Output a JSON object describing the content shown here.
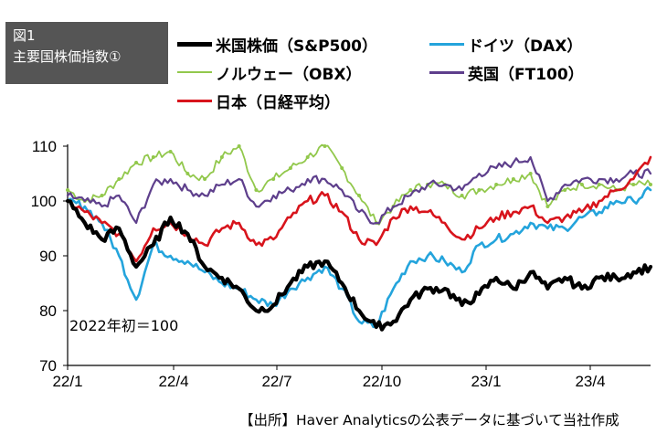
{
  "figure": {
    "number": "図1",
    "title": "主要国株価指数①"
  },
  "source": "【出所】Haver Analyticsの公表データに基づいて当社作成",
  "annotation": "2022年初＝100",
  "colors": {
    "sp500": "#000000",
    "obx": "#92c84c",
    "nikkei": "#d8141c",
    "dax": "#24a4dc",
    "ft100": "#5e3f8c"
  },
  "chart_data": {
    "type": "line",
    "title": "主要国株価指数①",
    "xlabel": "",
    "ylabel": "",
    "ylim": [
      70,
      110
    ],
    "yticks": [
      70,
      80,
      90,
      100,
      110
    ],
    "xticks": [
      "22/1",
      "22/4",
      "22/7",
      "22/10",
      "23/1",
      "23/4"
    ],
    "grid": false,
    "legend_placement": "top",
    "x": [
      "22/1",
      "22/1b",
      "22/2",
      "22/2b",
      "22/3",
      "22/3b",
      "22/4",
      "22/4b",
      "22/5",
      "22/5b",
      "22/6",
      "22/6b",
      "22/7",
      "22/7b",
      "22/8",
      "22/8b",
      "22/9",
      "22/9b",
      "22/10",
      "22/10b",
      "22/11",
      "22/11b",
      "22/12",
      "22/12b",
      "23/1",
      "23/1b",
      "23/2",
      "23/2b",
      "23/3",
      "23/3b",
      "23/4",
      "23/4b",
      "23/5",
      "23/5b",
      "23/6"
    ],
    "series": [
      {
        "name": "米国株価（S&P500）",
        "key": "sp500",
        "values": [
          100,
          96,
          93,
          95,
          88,
          92,
          97,
          94,
          88,
          86,
          84,
          80,
          81,
          85,
          88,
          89,
          85,
          80,
          77,
          78,
          82,
          84,
          84,
          81,
          83,
          86,
          84,
          87,
          84,
          86,
          84,
          86,
          86,
          87,
          88
        ]
      },
      {
        "name": "ドイツ（DAX）",
        "key": "dax",
        "values": [
          100,
          99,
          96,
          90,
          82,
          92,
          90,
          89,
          87,
          85,
          84,
          82,
          81,
          84,
          86,
          88,
          84,
          78,
          77,
          84,
          89,
          90,
          89,
          87,
          92,
          93,
          94,
          96,
          95,
          95,
          97,
          98,
          100,
          100,
          102
        ]
      },
      {
        "name": "ノルウェー（OBX）",
        "key": "obx",
        "values": [
          102,
          100,
          101,
          104,
          107,
          108,
          109,
          105,
          104,
          108,
          110,
          102,
          104,
          106,
          108,
          110,
          106,
          101,
          96,
          99,
          102,
          103,
          103,
          101,
          102,
          103,
          104,
          105,
          99,
          102,
          103,
          103,
          102,
          103,
          103
        ]
      },
      {
        "name": "英国（FT100）",
        "key": "ft100",
        "values": [
          101,
          100,
          99,
          101,
          96,
          103,
          104,
          102,
          101,
          103,
          104,
          99,
          101,
          102,
          104,
          104,
          102,
          98,
          96,
          99,
          101,
          103,
          103,
          102,
          105,
          106,
          107,
          108,
          100,
          103,
          104,
          104,
          104,
          105,
          105
        ]
      },
      {
        "name": "日本（日経平均）",
        "key": "nikkei",
        "values": [
          100,
          98,
          96,
          94,
          89,
          95,
          96,
          94,
          92,
          95,
          96,
          92,
          93,
          97,
          100,
          101,
          98,
          93,
          92,
          97,
          99,
          98,
          96,
          93,
          95,
          97,
          98,
          99,
          96,
          97,
          98,
          100,
          102,
          104,
          108
        ]
      }
    ]
  },
  "legend": [
    {
      "label": "米国株価（S&P500）",
      "key": "sp500"
    },
    {
      "label": "ドイツ（DAX）",
      "key": "dax"
    },
    {
      "label": "ノルウェー（OBX）",
      "key": "obx"
    },
    {
      "label": "英国（FT100）",
      "key": "ft100"
    },
    {
      "label": "日本（日経平均）",
      "key": "nikkei"
    }
  ]
}
